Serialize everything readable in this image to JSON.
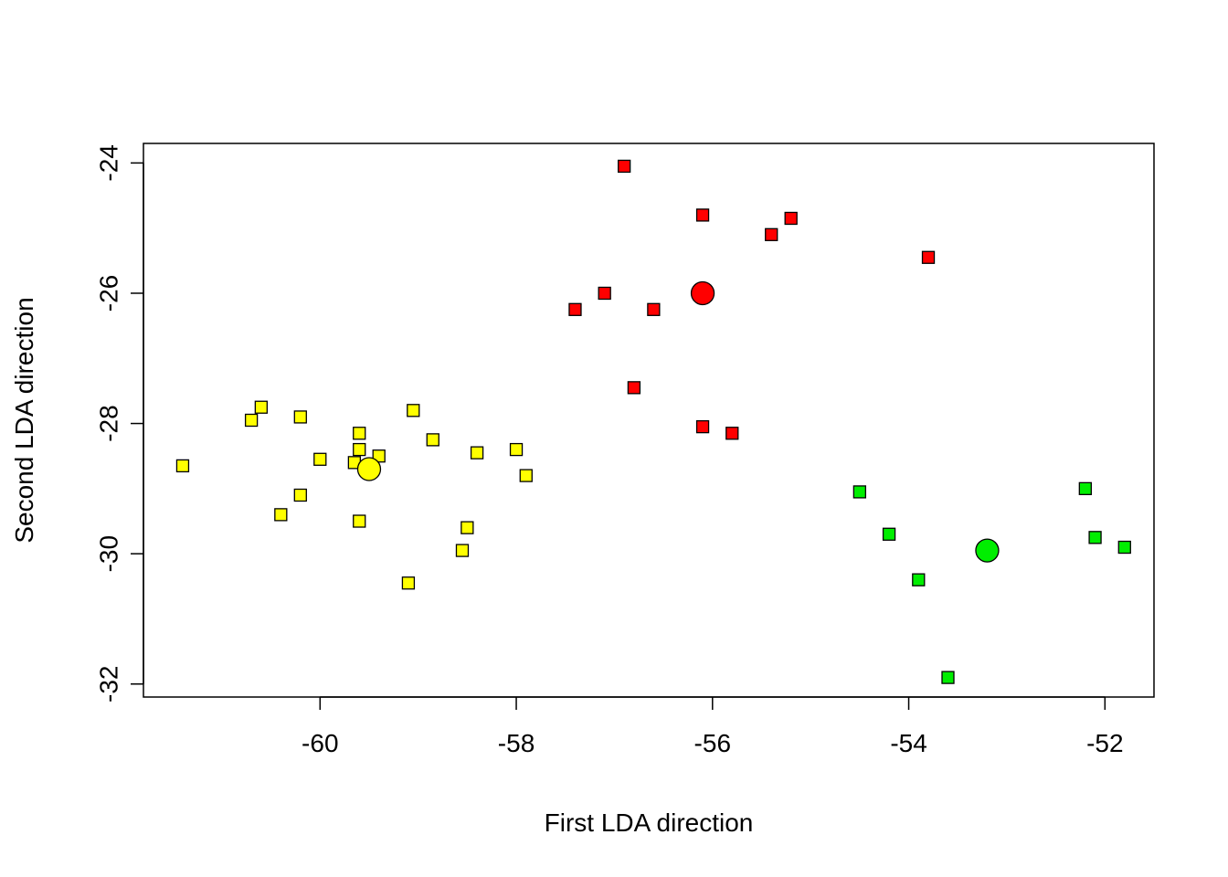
{
  "chart_data": {
    "type": "scatter",
    "title": "",
    "xlabel": "First LDA direction",
    "ylabel": "Second LDA direction",
    "xlim": [
      -61.8,
      -51.5
    ],
    "ylim": [
      -32.2,
      -23.7
    ],
    "x_ticks": [
      -60,
      -58,
      -56,
      -54,
      -52
    ],
    "y_ticks": [
      -32,
      -30,
      -28,
      -26,
      -24
    ],
    "x_tick_labels": [
      "-60",
      "-58",
      "-56",
      "-54",
      "-52"
    ],
    "y_tick_labels": [
      "-32",
      "-30",
      "-28",
      "-26",
      "-24"
    ],
    "grid": false,
    "legend": "none",
    "series": [
      {
        "color": "#ffff00",
        "marker": "square",
        "points": [
          [
            -61.4,
            -28.65
          ],
          [
            -60.7,
            -27.95
          ],
          [
            -60.6,
            -27.75
          ],
          [
            -60.2,
            -27.9
          ],
          [
            -60.4,
            -29.4
          ],
          [
            -60.2,
            -29.1
          ],
          [
            -60.0,
            -28.55
          ],
          [
            -59.6,
            -28.15
          ],
          [
            -59.6,
            -28.4
          ],
          [
            -59.4,
            -28.5
          ],
          [
            -59.65,
            -28.6
          ],
          [
            -59.6,
            -29.5
          ],
          [
            -59.05,
            -27.8
          ],
          [
            -58.85,
            -28.25
          ],
          [
            -58.4,
            -28.45
          ],
          [
            -58.0,
            -28.4
          ],
          [
            -57.9,
            -28.8
          ],
          [
            -58.5,
            -29.6
          ],
          [
            -58.55,
            -29.95
          ],
          [
            -59.1,
            -30.45
          ]
        ],
        "centroid": [
          -59.5,
          -28.7
        ]
      },
      {
        "color": "#ff0000",
        "marker": "square",
        "points": [
          [
            -56.9,
            -24.05
          ],
          [
            -56.1,
            -24.8
          ],
          [
            -55.2,
            -24.85
          ],
          [
            -55.4,
            -25.1
          ],
          [
            -53.8,
            -25.45
          ],
          [
            -57.1,
            -26.0
          ],
          [
            -57.4,
            -26.25
          ],
          [
            -56.6,
            -26.25
          ],
          [
            -56.8,
            -27.45
          ],
          [
            -56.1,
            -28.05
          ],
          [
            -55.8,
            -28.15
          ]
        ],
        "centroid": [
          -56.1,
          -26.0
        ]
      },
      {
        "color": "#00ee00",
        "marker": "square",
        "points": [
          [
            -54.5,
            -29.05
          ],
          [
            -54.2,
            -29.7
          ],
          [
            -53.9,
            -30.4
          ],
          [
            -53.6,
            -31.9
          ],
          [
            -52.2,
            -29.0
          ],
          [
            -52.1,
            -29.75
          ],
          [
            -51.8,
            -29.9
          ]
        ],
        "centroid": [
          -53.2,
          -29.95
        ]
      }
    ]
  }
}
